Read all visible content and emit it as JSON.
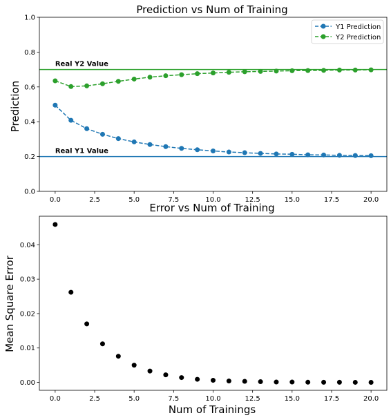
{
  "chart_data": [
    {
      "type": "line",
      "title": "Prediction vs Num of Training",
      "xlabel": "",
      "ylabel": "Prediction",
      "xlim": [
        -1,
        21
      ],
      "ylim": [
        0.0,
        1.0
      ],
      "xticks": [
        "0.0",
        "2.5",
        "5.0",
        "7.5",
        "10.0",
        "12.5",
        "15.0",
        "17.5",
        "20.0"
      ],
      "yticks": [
        "0.0",
        "0.2",
        "0.4",
        "0.6",
        "0.8",
        "1.0"
      ],
      "legend_position": "top-right",
      "x": [
        0,
        1,
        2,
        3,
        4,
        5,
        6,
        7,
        8,
        9,
        10,
        11,
        12,
        13,
        14,
        15,
        16,
        17,
        18,
        19,
        20
      ],
      "series": [
        {
          "name": "Y1 Prediction",
          "color": "#1f77b4",
          "style": "dashed-with-circles",
          "values": [
            0.495,
            0.408,
            0.36,
            0.328,
            0.303,
            0.284,
            0.269,
            0.257,
            0.247,
            0.239,
            0.232,
            0.226,
            0.222,
            0.218,
            0.215,
            0.213,
            0.21,
            0.209,
            0.207,
            0.206,
            0.205
          ]
        },
        {
          "name": "Y2 Prediction",
          "color": "#2ca02c",
          "style": "dashed-with-circles",
          "values": [
            0.635,
            0.602,
            0.606,
            0.618,
            0.632,
            0.645,
            0.656,
            0.664,
            0.67,
            0.676,
            0.68,
            0.684,
            0.687,
            0.689,
            0.691,
            0.693,
            0.694,
            0.695,
            0.697,
            0.697,
            0.698
          ]
        }
      ],
      "reference_lines": [
        {
          "label": "Real Y2 Value",
          "y": 0.7,
          "color": "#2ca02c"
        },
        {
          "label": "Real Y1 Value",
          "y": 0.2,
          "color": "#1f77b4"
        }
      ]
    },
    {
      "type": "scatter",
      "title": "Error vs Num of Training",
      "xlabel": "Num of Trainings",
      "ylabel": "Mean Square Error",
      "xlim": [
        -1,
        21
      ],
      "ylim": [
        -0.0023,
        0.0483
      ],
      "xticks": [
        "0.0",
        "2.5",
        "5.0",
        "7.5",
        "10.0",
        "12.5",
        "15.0",
        "17.5",
        "20.0"
      ],
      "yticks": [
        "0.00",
        "0.01",
        "0.02",
        "0.03",
        "0.04"
      ],
      "color": "#000000",
      "x": [
        0,
        1,
        2,
        3,
        4,
        5,
        6,
        7,
        8,
        9,
        10,
        11,
        12,
        13,
        14,
        15,
        16,
        17,
        18,
        19,
        20
      ],
      "values": [
        0.0459,
        0.0262,
        0.017,
        0.0112,
        0.0076,
        0.005,
        0.0033,
        0.0022,
        0.0014,
        0.0009,
        0.0006,
        0.0004,
        0.0003,
        0.0002,
        0.0001,
        0.0001,
        5e-05,
        4e-05,
        3e-05,
        2e-05,
        1e-05
      ]
    }
  ]
}
